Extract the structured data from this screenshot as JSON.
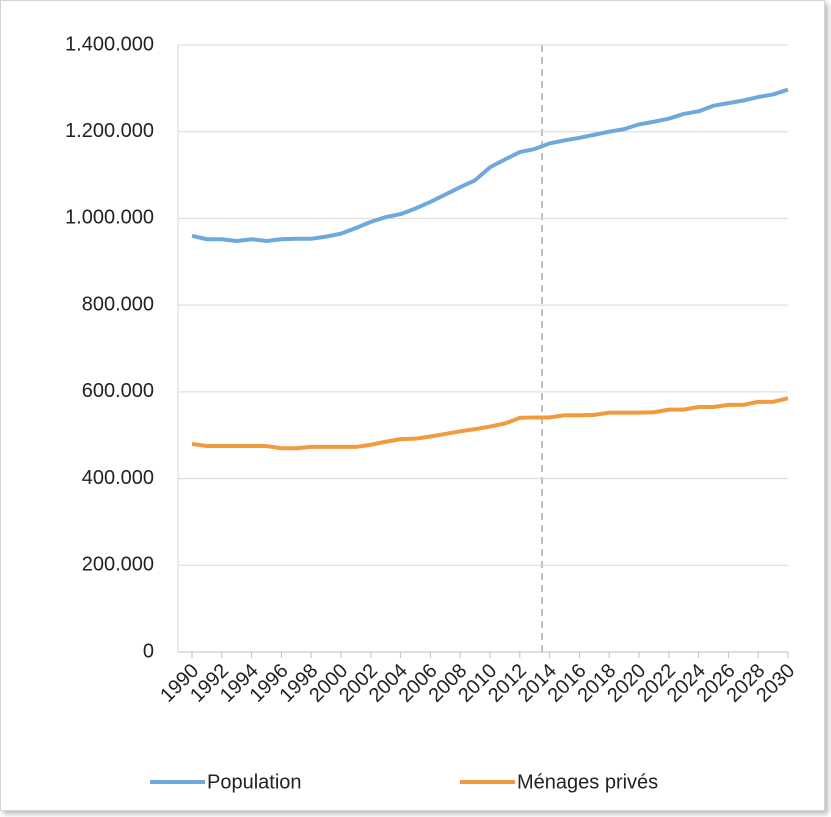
{
  "chart_data": {
    "type": "line",
    "categories": [
      "1990",
      null,
      "1992",
      null,
      "1994",
      null,
      "1996",
      null,
      "1998",
      null,
      "2000",
      null,
      "2002",
      null,
      "2004",
      null,
      "2006",
      null,
      "2008",
      null,
      "2010",
      null,
      "2012",
      null,
      "2014",
      null,
      "2016",
      null,
      "2018",
      null,
      "2020",
      null,
      "2022",
      null,
      "2024",
      null,
      "2026",
      null,
      "2028",
      null,
      "2030"
    ],
    "series": [
      {
        "name": "Population",
        "color": "#6fa8dc",
        "values": [
          960000,
          952000,
          952000,
          948000,
          952000,
          948000,
          952000,
          953000,
          953000,
          958000,
          965000,
          978000,
          992000,
          1003000,
          1010000,
          1023000,
          1038000,
          1055000,
          1072000,
          1088000,
          1118000,
          1136000,
          1153000,
          1160000,
          1173000,
          1180000,
          1186000,
          1193000,
          1200000,
          1206000,
          1217000,
          1223000,
          1230000,
          1241000,
          1247000,
          1260000,
          1266000,
          1272000,
          1280000,
          1286000,
          1297000
        ]
      },
      {
        "name": "Ménages privés",
        "color": "#f39a3d",
        "values": [
          480000,
          475000,
          475000,
          475000,
          475000,
          475000,
          470000,
          470000,
          473000,
          473000,
          473000,
          473000,
          478000,
          485000,
          491000,
          492000,
          497000,
          503000,
          509000,
          514000,
          520000,
          527000,
          540000,
          541000,
          541000,
          546000,
          546000,
          547000,
          552000,
          552000,
          552000,
          553000,
          559000,
          559000,
          565000,
          565000,
          570000,
          570000,
          577000,
          577000,
          585000
        ]
      }
    ],
    "ylim": [
      0,
      1400000
    ],
    "yticks": [
      0,
      {
        "value": 200000,
        "label": "200.000"
      },
      {
        "value": 400000,
        "label": "400.000"
      },
      {
        "value": 600000,
        "label": "600.000"
      },
      {
        "value": 800000,
        "label": "800.000"
      },
      {
        "value": 1000000,
        "label": "1.000.000"
      },
      {
        "value": 1200000,
        "label": "1.200.000"
      },
      {
        "value": 1400000,
        "label": "1.400.000"
      }
    ],
    "grid": true
  }
}
